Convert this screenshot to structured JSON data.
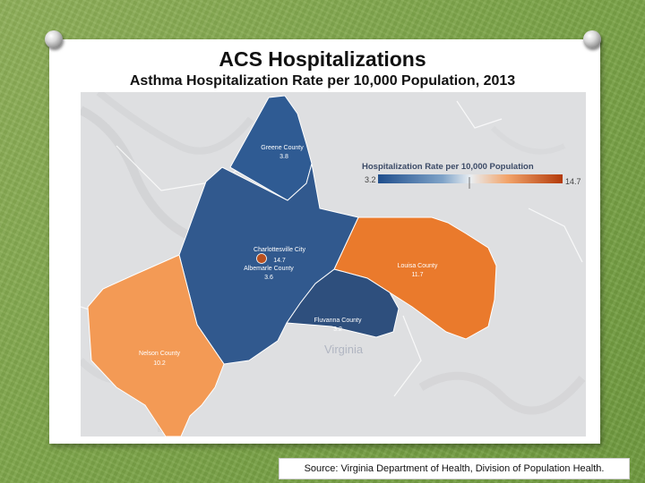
{
  "slide": {
    "title": "ACS Hospitalizations",
    "subtitle": "Asthma Hospitalization Rate per 10,000 Population, 2013",
    "source": "Source: Virginia Department of Health, Division of Population Health."
  },
  "map": {
    "legend": {
      "title": "Hospitalization Rate per 10,000 Population",
      "min_label": "3.2",
      "max_label": "14.7",
      "color_low": "#1f4e8c",
      "color_high": "#b33a0a"
    },
    "state_label": "Virginia",
    "counties": [
      {
        "name": "Greene County",
        "label": "Greene County",
        "value": "3.8",
        "color": "#2f5b93"
      },
      {
        "name": "Charlottesville City",
        "label": "Charlottesville City",
        "value": "14.7",
        "color": "#b9501f"
      },
      {
        "name": "Albemarle County",
        "label": "Albemarle County",
        "value": "3.6",
        "color": "#31598e"
      },
      {
        "name": "Louisa County",
        "label": "Louisa County",
        "value": "11.7",
        "color": "#ea7a2c"
      },
      {
        "name": "Fluvanna County",
        "label": "Fluvanna County",
        "value": "3.2",
        "color": "#2e4f7d"
      },
      {
        "name": "Nelson County",
        "label": "Nelson County",
        "value": "10.2",
        "color": "#f39a55"
      }
    ]
  }
}
